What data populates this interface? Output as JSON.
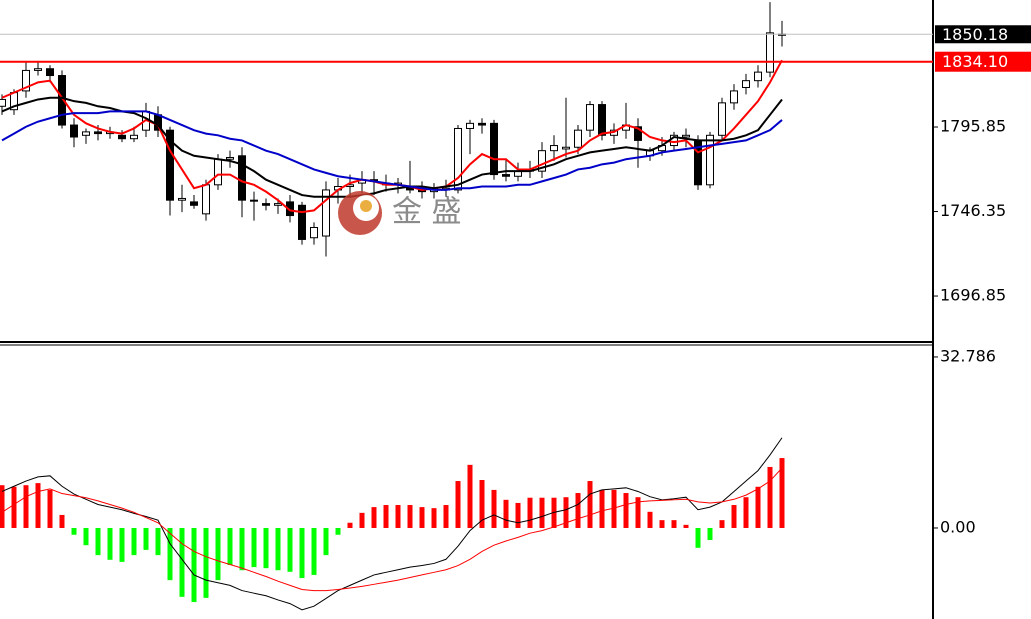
{
  "chart_data": [
    {
      "type": "candlestick",
      "open": [
        1808,
        1806,
        1817,
        1829,
        1830,
        1826,
        1797,
        1791,
        1793,
        1792,
        1791,
        1789,
        1794,
        1803,
        1794,
        1753,
        1752,
        1745,
        1762,
        1777,
        1779,
        1753,
        1751,
        1750,
        1752,
        1750,
        1731,
        1732,
        1759,
        1761,
        1763,
        1765,
        1763,
        1762,
        1761,
        1759,
        1758,
        1759,
        1759,
        1795,
        1798,
        1798,
        1768,
        1767,
        1770,
        1770,
        1782,
        1783,
        1784,
        1794,
        1809,
        1791,
        1794,
        1796,
        1779,
        1782,
        1785,
        1790,
        1788,
        1762,
        1791,
        1810,
        1819,
        1823,
        1828,
        1850
      ],
      "high": [
        1815,
        1818,
        1834,
        1834,
        1832,
        1829,
        1801,
        1795,
        1797,
        1796,
        1794,
        1796,
        1810,
        1808,
        1796,
        1762,
        1756,
        1765,
        1780,
        1782,
        1784,
        1758,
        1754,
        1754,
        1756,
        1752,
        1740,
        1764,
        1766,
        1768,
        1770,
        1770,
        1768,
        1766,
        1776,
        1764,
        1763,
        1765,
        1797,
        1800,
        1801,
        1800,
        1777,
        1775,
        1776,
        1787,
        1791,
        1813,
        1797,
        1811,
        1811,
        1798,
        1810,
        1801,
        1784,
        1790,
        1793,
        1795,
        1791,
        1793,
        1813,
        1821,
        1827,
        1832,
        1869,
        1858
      ],
      "low": [
        1803,
        1803,
        1813,
        1826,
        1822,
        1795,
        1784,
        1786,
        1788,
        1789,
        1787,
        1787,
        1790,
        1790,
        1744,
        1746,
        1748,
        1741,
        1759,
        1772,
        1743,
        1741,
        1747,
        1745,
        1740,
        1727,
        1727,
        1720,
        1751,
        1755,
        1757,
        1756,
        1758,
        1757,
        1757,
        1754,
        1754,
        1755,
        1757,
        1780,
        1792,
        1765,
        1764,
        1764,
        1766,
        1766,
        1776,
        1778,
        1780,
        1790,
        1788,
        1786,
        1789,
        1772,
        1776,
        1779,
        1782,
        1784,
        1759,
        1760,
        1788,
        1806,
        1815,
        1819,
        1825,
        1843
      ],
      "close": [
        1812,
        1816,
        1829,
        1830,
        1826,
        1797,
        1790,
        1793,
        1792,
        1793,
        1789,
        1791,
        1805,
        1794,
        1753,
        1754,
        1750,
        1762,
        1777,
        1778,
        1753,
        1753,
        1750,
        1751,
        1744,
        1730,
        1737,
        1759,
        1761,
        1762,
        1765,
        1764,
        1762,
        1763,
        1759,
        1758,
        1760,
        1760,
        1795,
        1798,
        1797,
        1768,
        1767,
        1770,
        1771,
        1782,
        1785,
        1784,
        1794,
        1809,
        1791,
        1794,
        1797,
        1788,
        1782,
        1785,
        1791,
        1791,
        1762,
        1791,
        1810,
        1817,
        1823,
        1828,
        1851,
        1850.18
      ],
      "up_color": "#ffffff",
      "down_color": "#000000",
      "series": [
        {
          "color": "#ff0000",
          "values": [
            1813,
            1816,
            1819,
            1822,
            1823,
            1813,
            1803,
            1798,
            1795,
            1793,
            1792,
            1795,
            1800,
            1797,
            1782,
            1771,
            1760,
            1762,
            1768,
            1768,
            1764,
            1762,
            1758,
            1753,
            1747,
            1746,
            1747,
            1753,
            1759,
            1763,
            1765,
            1764,
            1762,
            1762,
            1761,
            1759,
            1760,
            1761,
            1766,
            1774,
            1780,
            1777,
            1777,
            1771,
            1771,
            1774,
            1777,
            1780,
            1782,
            1788,
            1792,
            1793,
            1797,
            1795,
            1790,
            1788,
            1787,
            1788,
            1781,
            1784,
            1788,
            1795,
            1803,
            1811,
            1822,
            1835
          ]
        },
        {
          "color": "#000000",
          "values": [
            1805,
            1808,
            1810,
            1812,
            1813,
            1813,
            1811,
            1810,
            1808,
            1807,
            1805,
            1804,
            1801,
            1797,
            1788,
            1782,
            1779,
            1778,
            1777,
            1776,
            1774,
            1770,
            1765,
            1762,
            1759,
            1756,
            1755,
            1755,
            1755,
            1755,
            1756,
            1757,
            1759,
            1760,
            1761,
            1761,
            1760,
            1761,
            1762,
            1765,
            1768,
            1769,
            1770,
            1770,
            1770,
            1772,
            1774,
            1777,
            1779,
            1781,
            1782,
            1783,
            1784,
            1783,
            1782,
            1785,
            1790,
            1789,
            1788,
            1788,
            1788,
            1789,
            1791,
            1794,
            1803,
            1812
          ]
        },
        {
          "color": "#0000c8",
          "values": [
            1788,
            1792,
            1796,
            1799,
            1801,
            1803,
            1804,
            1804,
            1804,
            1805,
            1805,
            1805,
            1805,
            1803,
            1800,
            1797,
            1794,
            1792,
            1791,
            1789,
            1788,
            1785,
            1782,
            1780,
            1777,
            1774,
            1771,
            1769,
            1767,
            1766,
            1765,
            1764,
            1763,
            1762,
            1761,
            1760,
            1759,
            1759,
            1760,
            1760,
            1761,
            1761,
            1761,
            1762,
            1762,
            1764,
            1766,
            1768,
            1771,
            1772,
            1774,
            1775,
            1777,
            1778,
            1779,
            1781,
            1782,
            1783,
            1784,
            1785,
            1786,
            1787,
            1788,
            1791,
            1794,
            1800
          ]
        }
      ],
      "ylim": [
        1671.1,
        1870.25
      ],
      "yticks": [
        1795.85,
        1746.35,
        1696.85
      ],
      "hline": {
        "value": 1834.1,
        "label": "1834.10",
        "color": "#ff0000"
      },
      "last_price_color": "#c0c0c0",
      "watermark": "金 盛"
    },
    {
      "type": "macd",
      "values": [
        8.2,
        7.9,
        8.2,
        8.6,
        7.3,
        2.5,
        -1.3,
        -3.3,
        -5.2,
        -6.1,
        -6.5,
        -5.2,
        -4.2,
        -5.2,
        -10.0,
        -13.2,
        -14.2,
        -13.4,
        -10.0,
        -7.1,
        -8.1,
        -7.5,
        -7.7,
        -8.1,
        -8.4,
        -9.6,
        -9.0,
        -5.2,
        -1.3,
        1.0,
        2.9,
        4.0,
        4.4,
        4.4,
        4.4,
        4.0,
        3.8,
        4.4,
        9.0,
        12.1,
        9.2,
        7.3,
        5.4,
        4.8,
        5.8,
        5.8,
        5.8,
        5.9,
        6.7,
        9.0,
        7.3,
        7.3,
        6.7,
        5.9,
        3.1,
        1.5,
        1.5,
        0.6,
        -3.8,
        -2.3,
        1.5,
        4.4,
        5.9,
        7.9,
        11.7,
        13.4
      ],
      "up_color": "#ff0000",
      "down_color": "#00ff00",
      "series": [
        {
          "color": "#000000",
          "values": [
            7.0,
            8.0,
            9.0,
            9.8,
            10.0,
            8.0,
            6.5,
            5.5,
            4.5,
            4.0,
            3.5,
            2.8,
            2.2,
            1.5,
            -3.0,
            -6.0,
            -9.0,
            -10.0,
            -10.5,
            -11.0,
            -12.0,
            -12.5,
            -13.0,
            -13.8,
            -14.5,
            -15.7,
            -15.0,
            -13.5,
            -12.0,
            -11.0,
            -10.0,
            -9.0,
            -8.5,
            -8.0,
            -7.5,
            -7.2,
            -6.8,
            -6.0,
            -3.5,
            -0.5,
            1.5,
            2.5,
            1.5,
            1.0,
            1.5,
            2.2,
            3.0,
            3.5,
            4.5,
            6.5,
            7.3,
            7.5,
            7.7,
            7.0,
            6.0,
            5.4,
            5.6,
            5.9,
            3.5,
            4.0,
            5.0,
            7.0,
            9.0,
            11.0,
            14.0,
            17.3
          ]
        },
        {
          "color": "#ff0000",
          "values": [
            3.0,
            4.5,
            6.0,
            7.0,
            7.5,
            6.6,
            6.2,
            5.8,
            5.2,
            4.5,
            3.8,
            3.0,
            2.0,
            1.0,
            -1.0,
            -3.0,
            -4.5,
            -5.5,
            -6.3,
            -7.0,
            -7.7,
            -8.5,
            -9.3,
            -10.2,
            -11.0,
            -11.8,
            -12.0,
            -12.0,
            -11.8,
            -11.5,
            -11.2,
            -10.8,
            -10.4,
            -10.0,
            -9.5,
            -9.0,
            -8.5,
            -8.0,
            -7.2,
            -6.0,
            -4.5,
            -3.3,
            -2.5,
            -1.8,
            -1.0,
            -0.5,
            0.2,
            1.0,
            1.8,
            2.5,
            3.3,
            3.8,
            4.5,
            5.0,
            5.2,
            5.3,
            5.4,
            5.5,
            5.0,
            4.8,
            5.0,
            5.5,
            6.3,
            7.5,
            9.0,
            11.5
          ]
        }
      ],
      "ylim": [
        -17.45,
        35.08
      ],
      "yticks": [
        32.786,
        {
          "value": 0,
          "label": "0.00"
        }
      ]
    }
  ]
}
